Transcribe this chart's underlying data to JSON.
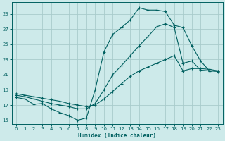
{
  "xlabel": "Humidex (Indice chaleur)",
  "background_color": "#cdeaea",
  "grid_color": "#a8cccc",
  "line_color": "#006060",
  "xlim": [
    -0.5,
    23.5
  ],
  "ylim": [
    14.5,
    30.5
  ],
  "xticks": [
    0,
    1,
    2,
    3,
    4,
    5,
    6,
    7,
    8,
    9,
    10,
    11,
    12,
    13,
    14,
    15,
    16,
    17,
    18,
    19,
    20,
    21,
    22,
    23
  ],
  "yticks": [
    15,
    17,
    19,
    21,
    23,
    25,
    27,
    29
  ],
  "line1_x": [
    0,
    1,
    2,
    3,
    4,
    5,
    6,
    7,
    8,
    9,
    10,
    11,
    12,
    13,
    14,
    15,
    16,
    17,
    18,
    19,
    20,
    21,
    22,
    23
  ],
  "line1_y": [
    18.0,
    17.8,
    17.1,
    17.2,
    16.5,
    16.0,
    15.6,
    15.0,
    15.3,
    19.0,
    24.0,
    26.3,
    27.2,
    28.2,
    29.8,
    29.5,
    29.5,
    29.3,
    27.5,
    27.2,
    24.8,
    22.8,
    21.5,
    21.5
  ],
  "line2_x": [
    0,
    1,
    2,
    3,
    4,
    5,
    6,
    7,
    8,
    9,
    10,
    11,
    12,
    13,
    14,
    15,
    16,
    17,
    18,
    19,
    20,
    21,
    22,
    23
  ],
  "line2_y": [
    18.3,
    18.1,
    17.8,
    17.5,
    17.2,
    17.0,
    16.8,
    16.5,
    16.5,
    17.2,
    19.0,
    21.0,
    22.2,
    23.5,
    24.8,
    26.0,
    27.3,
    27.7,
    27.2,
    22.5,
    22.8,
    21.6,
    21.5,
    21.4
  ],
  "line3_x": [
    0,
    1,
    2,
    3,
    4,
    5,
    6,
    7,
    8,
    9,
    10,
    11,
    12,
    13,
    14,
    15,
    16,
    17,
    18,
    19,
    20,
    21,
    22,
    23
  ],
  "line3_y": [
    18.5,
    18.3,
    18.1,
    17.9,
    17.7,
    17.5,
    17.2,
    17.0,
    16.8,
    17.0,
    17.8,
    18.8,
    19.8,
    20.8,
    21.5,
    22.0,
    22.5,
    23.0,
    23.5,
    21.5,
    21.8,
    21.8,
    21.7,
    21.5
  ]
}
